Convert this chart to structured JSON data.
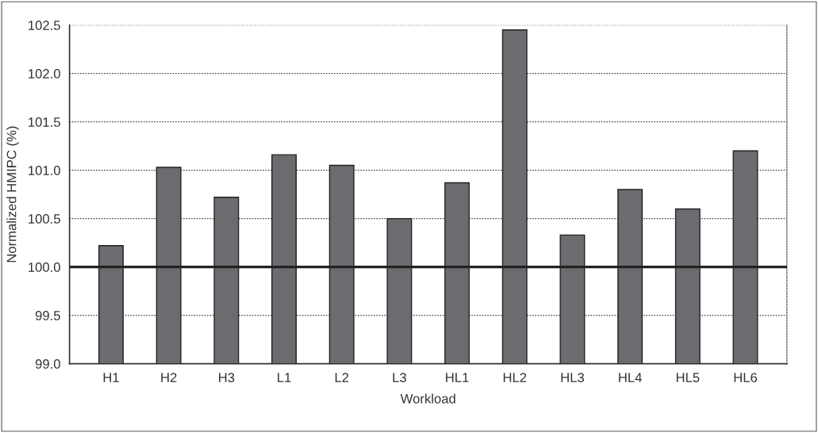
{
  "chart_data": {
    "type": "bar",
    "xlabel": "Workload",
    "ylabel": "Normalized HMIPC (%)",
    "categories": [
      "H1",
      "H2",
      "H3",
      "L1",
      "L2",
      "L3",
      "HL1",
      "HL2",
      "HL3",
      "HL4",
      "HL5",
      "HL6"
    ],
    "values": [
      100.22,
      101.03,
      100.72,
      101.16,
      101.05,
      100.5,
      100.87,
      102.45,
      100.33,
      100.8,
      100.6,
      101.2
    ],
    "color": "#6b6c70",
    "ylim": [
      99.0,
      102.5
    ],
    "yticks": [
      {
        "value": 99.0,
        "label": "99.0"
      },
      {
        "value": 99.5,
        "label": "99.5"
      },
      {
        "value": 100.0,
        "label": "100.0"
      },
      {
        "value": 100.5,
        "label": "100.5"
      },
      {
        "value": 101.0,
        "label": "101.0"
      },
      {
        "value": 101.5,
        "label": "101.5"
      },
      {
        "value": 102.0,
        "label": "102.0"
      },
      {
        "value": 102.5,
        "label": "102.5"
      }
    ],
    "grid": "y",
    "ref_lines": [
      {
        "axis": "y",
        "value": 100.0,
        "color": "#222222"
      }
    ]
  }
}
